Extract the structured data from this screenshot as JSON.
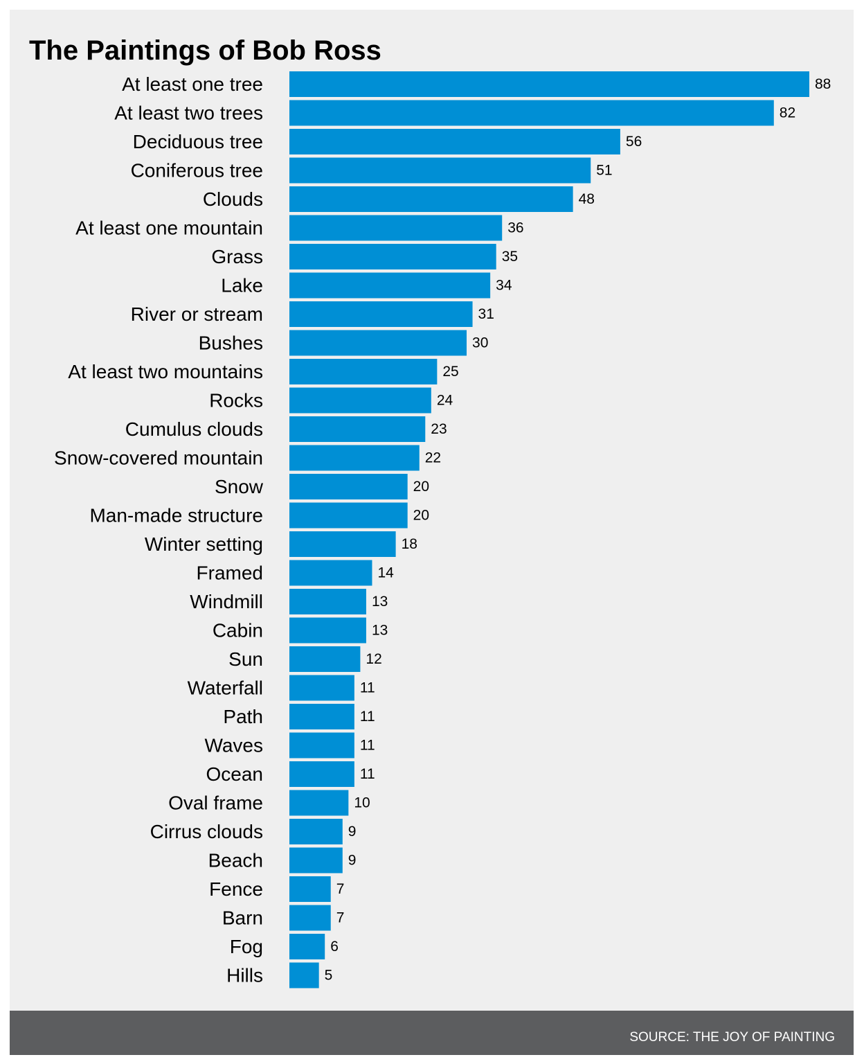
{
  "chart_data": {
    "type": "bar",
    "orientation": "horizontal",
    "title": "The Paintings of Bob Ross",
    "categories": [
      "At least one tree",
      "At least two trees",
      "Deciduous tree",
      "Coniferous tree",
      "Clouds",
      "At least one mountain",
      "Grass",
      "Lake",
      "River or stream",
      "Bushes",
      "At least two mountains",
      "Rocks",
      "Cumulus clouds",
      "Snow-covered mountain",
      "Snow",
      "Man-made structure",
      "Winter setting",
      "Framed",
      "Windmill",
      "Cabin",
      "Sun",
      "Waterfall",
      "Path",
      "Waves",
      "Ocean",
      "Oval frame",
      "Cirrus clouds",
      "Beach",
      "Fence",
      "Barn",
      "Fog",
      "Hills"
    ],
    "values": [
      88,
      82,
      56,
      51,
      48,
      36,
      35,
      34,
      31,
      30,
      25,
      24,
      23,
      22,
      20,
      20,
      18,
      14,
      13,
      13,
      12,
      11,
      11,
      11,
      11,
      10,
      9,
      9,
      7,
      7,
      6,
      5
    ],
    "data_labels": true,
    "axes_visible": false,
    "grid": false,
    "legend": "none",
    "bar_color": "#008fd5"
  },
  "footer": {
    "source": "SOURCE: THE JOY OF PAINTING"
  },
  "colors": {
    "panel_background": "#efefef",
    "footer_background": "#5c5d5f",
    "footer_text": "#ffffff"
  }
}
